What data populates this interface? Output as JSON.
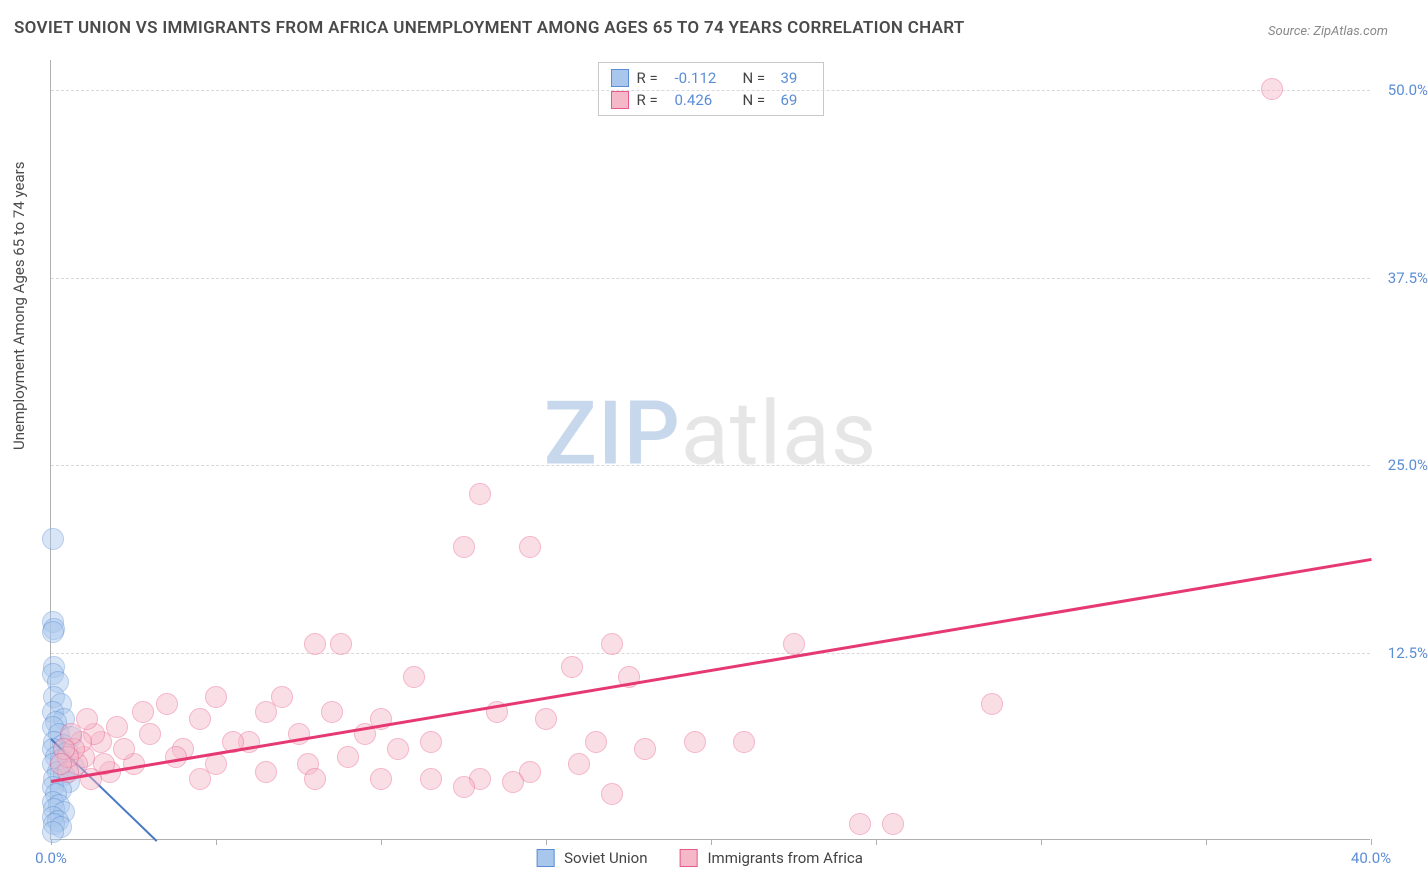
{
  "title": "SOVIET UNION VS IMMIGRANTS FROM AFRICA UNEMPLOYMENT AMONG AGES 65 TO 74 YEARS CORRELATION CHART",
  "source": "Source: ZipAtlas.com",
  "y_axis_label": "Unemployment Among Ages 65 to 74 years",
  "watermark": {
    "part1": "ZIP",
    "part2": "atlas"
  },
  "chart": {
    "type": "scatter",
    "xlim": [
      0,
      40
    ],
    "ylim": [
      0,
      52
    ],
    "x_ticks": [
      0,
      5,
      10,
      15,
      20,
      25,
      30,
      35,
      40
    ],
    "x_tick_labels": {
      "0": "0.0%",
      "40": "40.0%"
    },
    "y_ticks": [
      12.5,
      25.0,
      37.5,
      50.0
    ],
    "y_tick_labels": [
      "12.5%",
      "25.0%",
      "37.5%",
      "50.0%"
    ],
    "background_color": "#ffffff",
    "grid_color": "#d8d8d8",
    "axis_color": "#b0b0b0",
    "tick_label_color": "#5b8dd6",
    "point_radius": 11,
    "point_opacity": 0.45
  },
  "series": [
    {
      "name": "Soviet Union",
      "color_fill": "#a9c7ec",
      "color_stroke": "#5b8dd6",
      "R": "-0.112",
      "N": "39",
      "trend": {
        "x1": 0,
        "y1": 6.8,
        "x2": 3.2,
        "y2": 0,
        "color": "#4a79c4",
        "width": 2
      },
      "points": [
        [
          0.05,
          20.0
        ],
        [
          0.05,
          14.5
        ],
        [
          0.08,
          14.0
        ],
        [
          0.05,
          13.8
        ],
        [
          0.1,
          11.5
        ],
        [
          0.05,
          11.0
        ],
        [
          0.2,
          10.5
        ],
        [
          0.1,
          9.5
        ],
        [
          0.3,
          9.0
        ],
        [
          0.05,
          8.5
        ],
        [
          0.4,
          8.0
        ],
        [
          0.15,
          7.8
        ],
        [
          0.05,
          7.5
        ],
        [
          0.25,
          7.0
        ],
        [
          0.6,
          6.8
        ],
        [
          0.1,
          6.5
        ],
        [
          0.35,
          6.3
        ],
        [
          0.05,
          6.0
        ],
        [
          0.5,
          5.8
        ],
        [
          0.15,
          5.5
        ],
        [
          0.3,
          5.3
        ],
        [
          0.05,
          5.0
        ],
        [
          0.7,
          4.8
        ],
        [
          0.2,
          4.5
        ],
        [
          0.4,
          4.3
        ],
        [
          0.1,
          4.0
        ],
        [
          0.55,
          3.8
        ],
        [
          0.05,
          3.5
        ],
        [
          0.3,
          3.3
        ],
        [
          0.15,
          3.0
        ],
        [
          0.05,
          2.5
        ],
        [
          0.25,
          2.3
        ],
        [
          0.1,
          2.0
        ],
        [
          0.4,
          1.8
        ],
        [
          0.05,
          1.5
        ],
        [
          0.2,
          1.2
        ],
        [
          0.1,
          1.0
        ],
        [
          0.3,
          0.8
        ],
        [
          0.05,
          0.5
        ]
      ]
    },
    {
      "name": "Immigrants from Africa",
      "color_fill": "#f5b8c8",
      "color_stroke": "#e85a8a",
      "R": "0.426",
      "N": "69",
      "trend": {
        "x1": 0,
        "y1": 4.0,
        "x2": 40,
        "y2": 18.8,
        "color": "#e63872",
        "width": 2.5
      },
      "points": [
        [
          37.0,
          50.0
        ],
        [
          13.0,
          23.0
        ],
        [
          12.5,
          19.5
        ],
        [
          14.5,
          19.5
        ],
        [
          28.5,
          9.0
        ],
        [
          8.0,
          13.0
        ],
        [
          8.8,
          13.0
        ],
        [
          17.0,
          13.0
        ],
        [
          22.5,
          13.0
        ],
        [
          15.8,
          11.5
        ],
        [
          17.5,
          10.8
        ],
        [
          11.0,
          10.8
        ],
        [
          13.5,
          8.5
        ],
        [
          15.0,
          8.0
        ],
        [
          16.5,
          6.5
        ],
        [
          19.5,
          6.5
        ],
        [
          21.0,
          6.5
        ],
        [
          18.0,
          6.0
        ],
        [
          16.0,
          5.0
        ],
        [
          14.5,
          4.5
        ],
        [
          13.0,
          4.0
        ],
        [
          14.0,
          3.8
        ],
        [
          11.5,
          4.0
        ],
        [
          12.5,
          3.5
        ],
        [
          10.0,
          8.0
        ],
        [
          9.5,
          7.0
        ],
        [
          8.5,
          8.5
        ],
        [
          7.0,
          9.5
        ],
        [
          6.0,
          6.5
        ],
        [
          6.5,
          8.5
        ],
        [
          7.5,
          7.0
        ],
        [
          5.0,
          9.5
        ],
        [
          5.5,
          6.5
        ],
        [
          4.5,
          8.0
        ],
        [
          4.0,
          6.0
        ],
        [
          3.5,
          9.0
        ],
        [
          3.8,
          5.5
        ],
        [
          3.0,
          7.0
        ],
        [
          2.8,
          8.5
        ],
        [
          2.5,
          5.0
        ],
        [
          2.2,
          6.0
        ],
        [
          2.0,
          7.5
        ],
        [
          1.8,
          4.5
        ],
        [
          1.5,
          6.5
        ],
        [
          1.6,
          5.0
        ],
        [
          1.3,
          7.0
        ],
        [
          1.2,
          4.0
        ],
        [
          1.0,
          5.5
        ],
        [
          0.9,
          6.5
        ],
        [
          1.1,
          8.0
        ],
        [
          0.8,
          5.0
        ],
        [
          0.7,
          6.0
        ],
        [
          0.6,
          7.0
        ],
        [
          0.5,
          4.5
        ],
        [
          0.5,
          5.5
        ],
        [
          0.4,
          6.0
        ],
        [
          0.3,
          5.0
        ],
        [
          17.0,
          3.0
        ],
        [
          24.5,
          1.0
        ],
        [
          25.5,
          1.0
        ],
        [
          6.5,
          4.5
        ],
        [
          7.8,
          5.0
        ],
        [
          9.0,
          5.5
        ],
        [
          10.0,
          4.0
        ],
        [
          10.5,
          6.0
        ],
        [
          11.5,
          6.5
        ],
        [
          8.0,
          4.0
        ],
        [
          5.0,
          5.0
        ],
        [
          4.5,
          4.0
        ]
      ]
    }
  ],
  "legend_top": {
    "R_label": "R =",
    "N_label": "N ="
  },
  "legend_bottom": [
    {
      "swatch_fill": "#a9c7ec",
      "swatch_stroke": "#5b8dd6",
      "label": "Soviet Union"
    },
    {
      "swatch_fill": "#f5b8c8",
      "swatch_stroke": "#e85a8a",
      "label": "Immigrants from Africa"
    }
  ]
}
